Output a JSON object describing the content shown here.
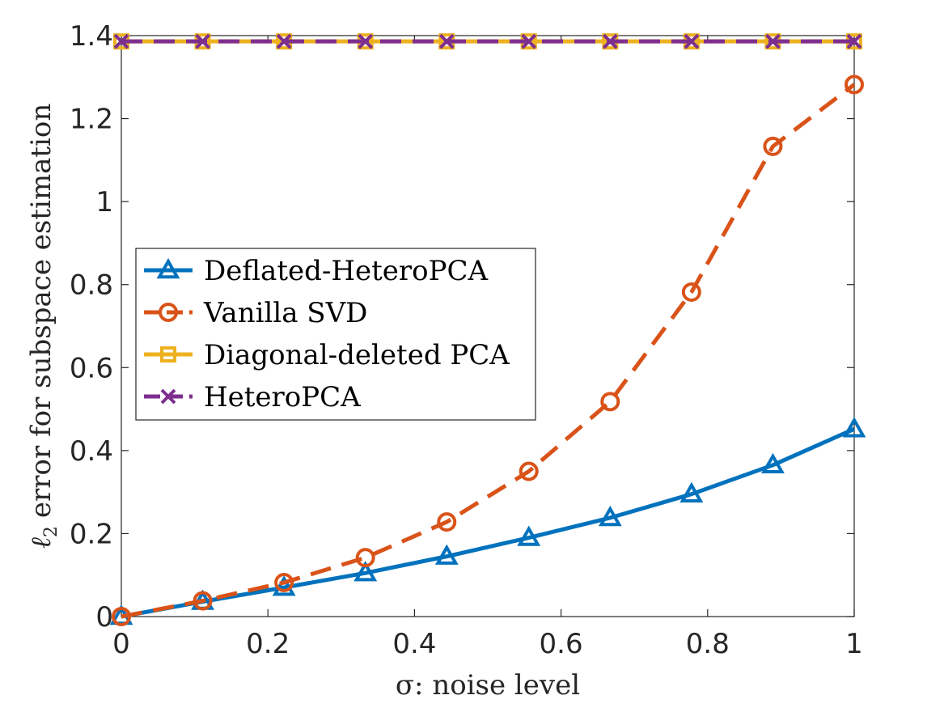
{
  "chart_data": {
    "type": "line",
    "title": "",
    "xlabel": "σ: noise level",
    "ylabel_parts": {
      "symbol": "ℓ",
      "subscript": "2",
      "text": "error for subspace estimation"
    },
    "xlim": [
      0,
      1
    ],
    "ylim": [
      0,
      1.4
    ],
    "x_ticks": [
      0,
      0.2,
      0.4,
      0.6,
      0.8,
      1
    ],
    "x_tick_labels": [
      "0",
      "0.2",
      "0.4",
      "0.6",
      "0.8",
      "1"
    ],
    "y_ticks": [
      0,
      0.2,
      0.4,
      0.6,
      0.8,
      1,
      1.2,
      1.4
    ],
    "y_tick_labels": [
      "0",
      "0.2",
      "0.4",
      "0.6",
      "0.8",
      "1",
      "1.2",
      "1.4"
    ],
    "grid": false,
    "legend_position": "middle-left",
    "x": [
      0,
      0.111,
      0.222,
      0.333,
      0.444,
      0.556,
      0.667,
      0.778,
      0.889,
      1
    ],
    "series": [
      {
        "name": "Deflated-HeteroPCA",
        "color": "#0072BD",
        "line_style": "solid",
        "marker": "triangle",
        "values": [
          0.0,
          0.036,
          0.07,
          0.105,
          0.145,
          0.19,
          0.238,
          0.295,
          0.365,
          0.452
        ]
      },
      {
        "name": "Vanilla SVD",
        "color": "#D95319",
        "line_style": "dashed",
        "marker": "circle",
        "values": [
          0.0,
          0.038,
          0.082,
          0.142,
          0.228,
          0.35,
          0.518,
          0.782,
          1.133,
          1.282
        ]
      },
      {
        "name": "Diagonal-deleted PCA",
        "color": "#EDB120",
        "line_style": "solid",
        "marker": "square",
        "values": [
          1.386,
          1.386,
          1.386,
          1.386,
          1.386,
          1.386,
          1.386,
          1.386,
          1.386,
          1.386
        ]
      },
      {
        "name": "HeteroPCA",
        "color": "#7E2F8E",
        "line_style": "dashed",
        "marker": "x",
        "values": [
          1.386,
          1.386,
          1.386,
          1.386,
          1.386,
          1.386,
          1.386,
          1.386,
          1.386,
          1.386
        ]
      }
    ]
  }
}
